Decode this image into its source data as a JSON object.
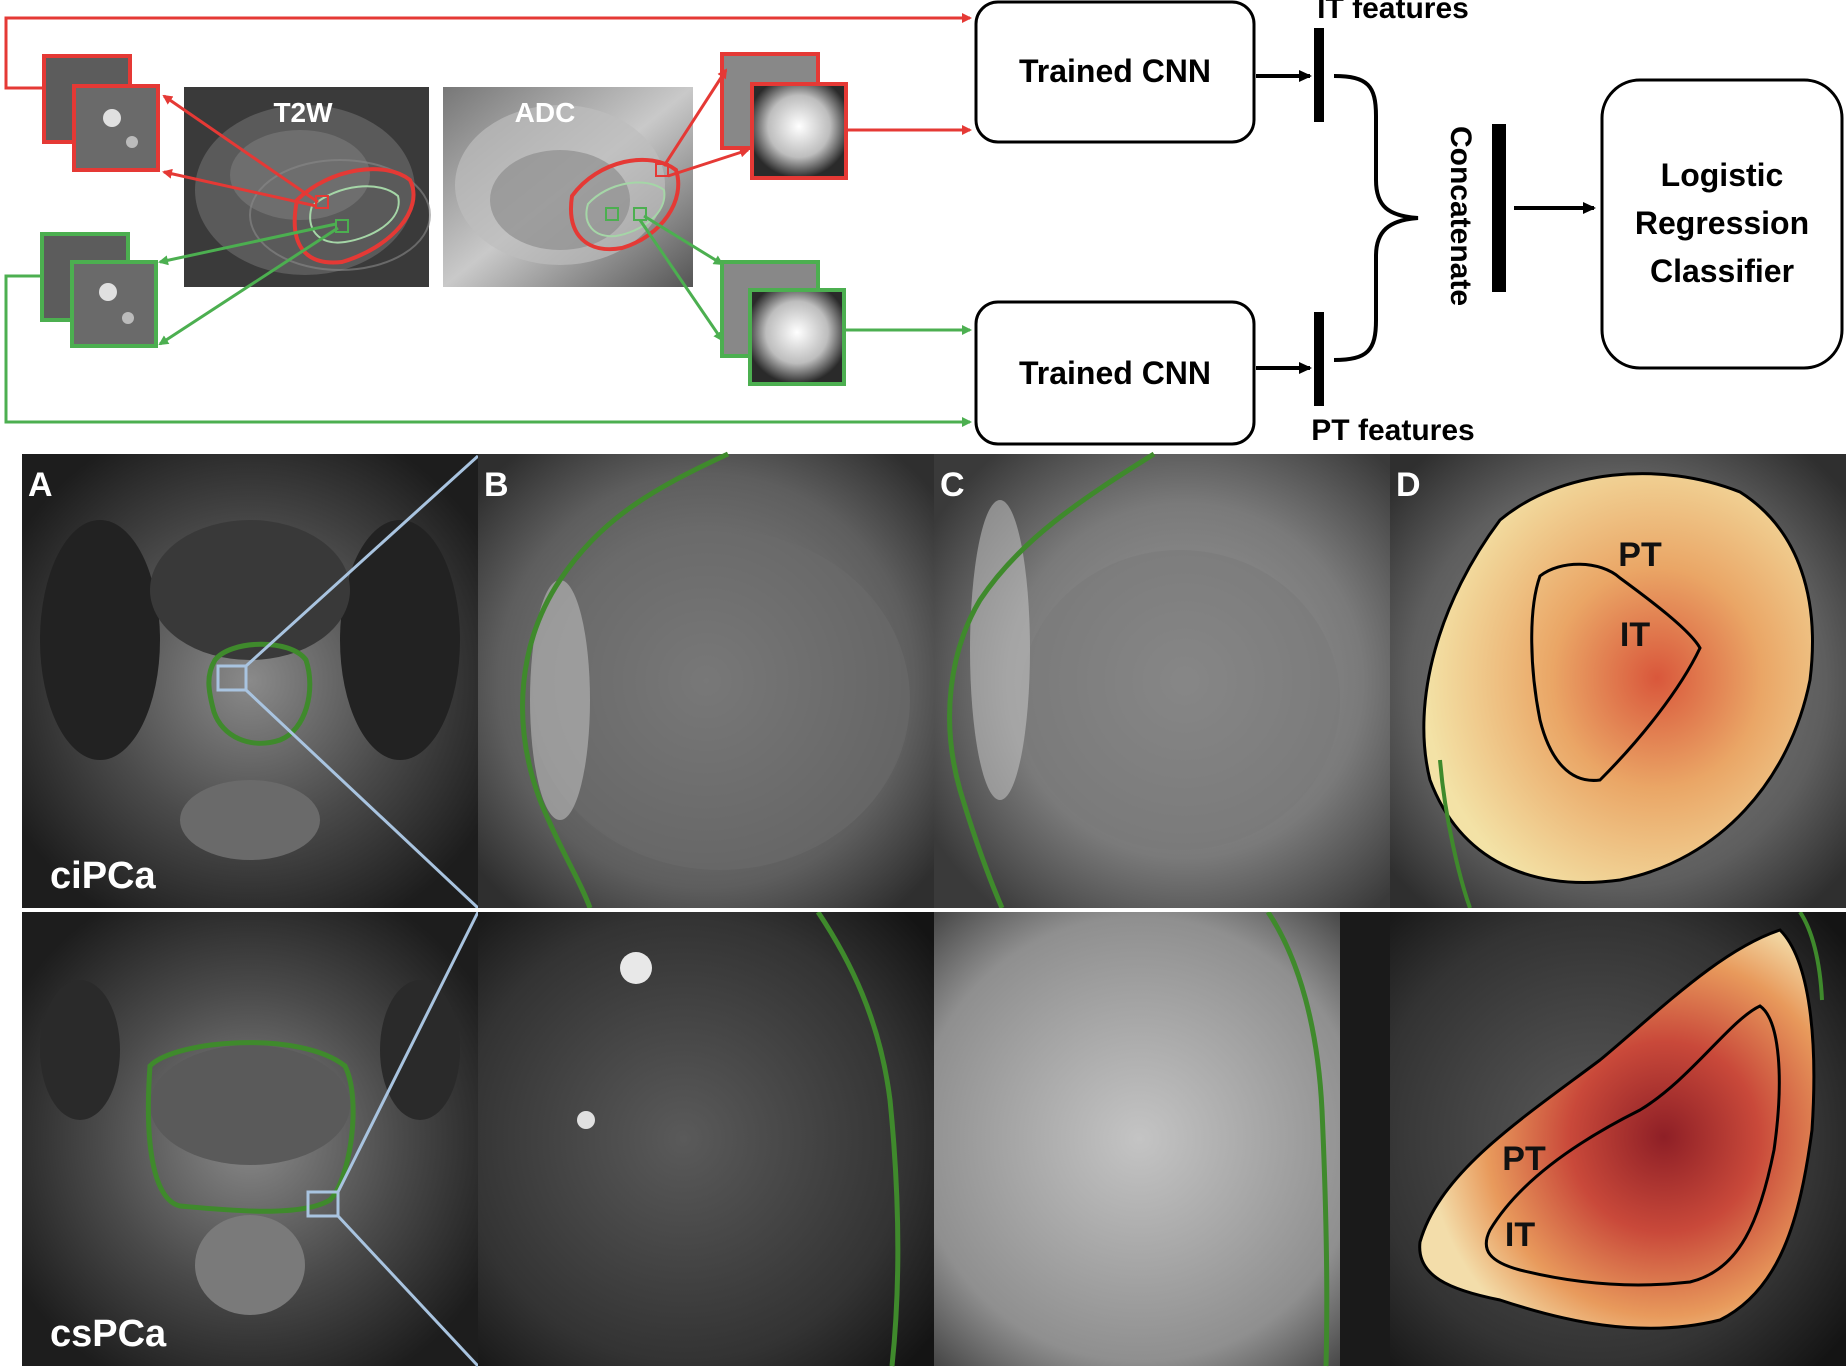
{
  "pipeline": {
    "image_labels": {
      "t2w": "T2W",
      "adc": "ADC"
    },
    "cnn_top": "Trained CNN",
    "cnn_bottom": "Trained CNN",
    "it_features": "IT features",
    "pt_features": "PT features",
    "concatenate": "Concatenate",
    "classifier_lines": [
      "Logistic",
      "Regression",
      "Classifier"
    ]
  },
  "panels": {
    "letters": [
      "A",
      "B",
      "C",
      "D"
    ],
    "row_labels": [
      "ciPCa",
      "csPCa"
    ],
    "region_labels": {
      "pt_top": "PT",
      "it_top": "IT",
      "pt_bottom": "PT",
      "it_bottom": "IT"
    }
  },
  "colors": {
    "intratumoral": "#e53935",
    "peritumoral": "#4caf50",
    "contour": "#3f8a2c",
    "zoom_lines": "#a9c4e0"
  }
}
